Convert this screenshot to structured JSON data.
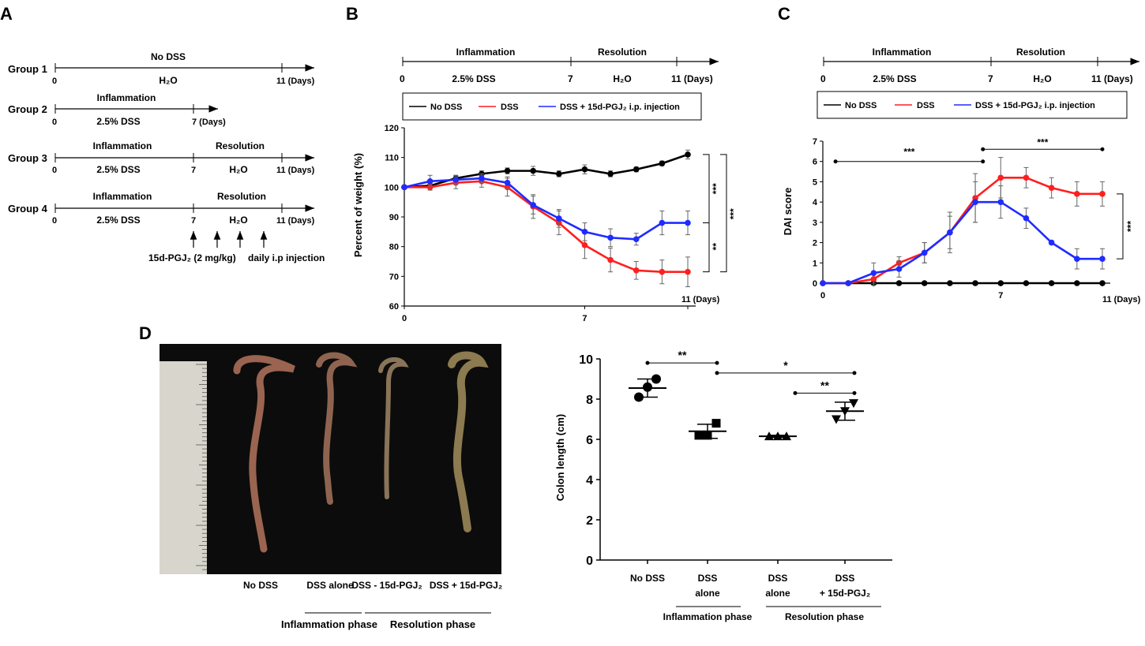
{
  "panels": {
    "a": {
      "letter": "A"
    },
    "b": {
      "letter": "B"
    },
    "c": {
      "letter": "C"
    },
    "d": {
      "letter": "D"
    }
  },
  "schemes": {
    "group1": {
      "label": "Group 1",
      "top": "No DSS",
      "bottom": "H₂O",
      "start": "0",
      "end": "11 (Days)"
    },
    "group2": {
      "label": "Group 2",
      "top": "Inflammation",
      "bottom": "2.5% DSS",
      "start": "0",
      "end": "7 (Days)"
    },
    "group3": {
      "label": "Group 3",
      "top1": "Inflammation",
      "top2": "Resolution",
      "bottom1": "2.5% DSS",
      "bottom2": "H₂O",
      "start": "0",
      "mid": "7",
      "end": "11 (Days)"
    },
    "group4": {
      "label": "Group 4",
      "top1": "Inflammation",
      "top2": "Resolution",
      "bottom1": "2.5% DSS",
      "bottom2": "H₂O",
      "start": "0",
      "mid": "7",
      "end": "11 (Days)",
      "injection_drug": "15d-PGJ₂ (2 mg/kg)",
      "injection_text": "daily i.p injection"
    },
    "timeline": {
      "phase1": "Inflammation",
      "phase2": "Resolution",
      "dss": "2.5% DSS",
      "water": "H₂O",
      "start": "0",
      "mid": "7",
      "end": "11 (Days)"
    }
  },
  "legend": {
    "no_dss": "No DSS",
    "dss": "DSS",
    "treated": "DSS + 15d-PGJ₂ i.p. injection"
  },
  "colors": {
    "no_dss": "#000000",
    "dss": "#ff1f1f",
    "treated": "#1f2cff"
  },
  "photo": {
    "labels": [
      "No DSS",
      "DSS alone",
      "DSS - 15d-PGJ₂",
      "DSS + 15d-PGJ₂"
    ],
    "phase1": "Inflammation phase",
    "phase2": "Resolution phase"
  },
  "chart_data": [
    {
      "id": "weight",
      "type": "line",
      "ylabel": "Percent of weight (%)",
      "xlabel": "11 (Days)",
      "xlim": [
        0,
        11
      ],
      "ylim": [
        60,
        120
      ],
      "yticks": [
        60,
        70,
        80,
        90,
        100,
        110,
        120
      ],
      "xticks": [
        0,
        7
      ],
      "series": [
        {
          "name": "No DSS",
          "x": [
            0,
            1,
            2,
            3,
            4,
            5,
            6,
            7,
            8,
            9,
            10,
            11
          ],
          "values": [
            100,
            100.5,
            103,
            104.5,
            105.5,
            105.5,
            104.5,
            106,
            104.5,
            106,
            108,
            111
          ],
          "err": [
            0.5,
            0.8,
            1,
            1,
            1,
            1.5,
            1,
            1.5,
            1,
            0.8,
            0.8,
            1.5
          ]
        },
        {
          "name": "DSS",
          "x": [
            0,
            1,
            2,
            3,
            4,
            5,
            6,
            7,
            8,
            9,
            10,
            11
          ],
          "values": [
            100,
            100,
            101.5,
            102,
            100,
            93.5,
            88,
            80.5,
            75.5,
            72,
            71.5,
            71.5
          ],
          "err": [
            0.5,
            1,
            2,
            2,
            3,
            4,
            4,
            4.5,
            4,
            3,
            4,
            5
          ]
        },
        {
          "name": "DSS + 15d-PGJ₂ i.p. injection",
          "x": [
            0,
            1,
            2,
            3,
            4,
            5,
            6,
            7,
            8,
            9,
            10,
            11
          ],
          "values": [
            100,
            102,
            102.5,
            103,
            101.5,
            94,
            89.5,
            85,
            83,
            82.5,
            88,
            88
          ],
          "err": [
            0.5,
            2,
            1.5,
            1.5,
            2,
            3,
            3,
            3,
            3,
            2,
            4,
            4
          ]
        }
      ],
      "significance": [
        "***",
        "**",
        "***"
      ]
    },
    {
      "id": "dai",
      "type": "line",
      "ylabel": "DAI score",
      "xlabel": "11 (Days)",
      "xlim": [
        0,
        11
      ],
      "ylim": [
        0,
        7
      ],
      "yticks": [
        0,
        1,
        2,
        3,
        4,
        5,
        6,
        7
      ],
      "xticks": [
        0,
        7
      ],
      "series": [
        {
          "name": "No DSS",
          "x": [
            0,
            1,
            2,
            3,
            4,
            5,
            6,
            7,
            8,
            9,
            10,
            11
          ],
          "values": [
            0,
            0,
            0,
            0,
            0,
            0,
            0,
            0,
            0,
            0,
            0,
            0
          ],
          "err": [
            0,
            0,
            0,
            0,
            0,
            0,
            0,
            0,
            0,
            0,
            0,
            0
          ]
        },
        {
          "name": "DSS",
          "x": [
            0,
            1,
            2,
            3,
            4,
            5,
            6,
            7,
            8,
            9,
            10,
            11
          ],
          "values": [
            0,
            0,
            0.2,
            1,
            1.5,
            2.5,
            4.2,
            5.2,
            5.2,
            4.7,
            4.4,
            4.4
          ],
          "err": [
            0,
            0,
            0.3,
            0.3,
            0.5,
            1,
            1.2,
            1,
            0.5,
            0.5,
            0.6,
            0.6
          ]
        },
        {
          "name": "DSS + 15d-PGJ₂ i.p. injection",
          "x": [
            0,
            1,
            2,
            3,
            4,
            5,
            6,
            7,
            8,
            9,
            10,
            11
          ],
          "values": [
            0,
            0,
            0.5,
            0.7,
            1.5,
            2.5,
            4,
            4,
            3.2,
            2,
            1.2,
            1.2
          ],
          "err": [
            0,
            0,
            0.5,
            0.4,
            0.5,
            0.8,
            1,
            0.8,
            0.5,
            0.1,
            0.5,
            0.5
          ]
        }
      ],
      "significance": [
        "***",
        "***",
        "***"
      ]
    },
    {
      "id": "colon",
      "type": "scatter",
      "ylabel": "Colon length (cm)",
      "ylim": [
        0,
        10
      ],
      "yticks": [
        0,
        2,
        4,
        6,
        8,
        10
      ],
      "groups": [
        {
          "label1": "No DSS",
          "label2": "",
          "points": [
            8.1,
            8.6,
            9.0
          ],
          "mean": 8.55,
          "sd": 0.45,
          "marker": "circle"
        },
        {
          "label1": "DSS",
          "label2": "alone",
          "points": [
            6.2,
            6.2,
            6.8
          ],
          "mean": 6.4,
          "sd": 0.35,
          "marker": "square"
        },
        {
          "label1": "DSS",
          "label2": "alone",
          "points": [
            6.15,
            6.15,
            6.15
          ],
          "mean": 6.15,
          "sd": 0.05,
          "marker": "triangle-up"
        },
        {
          "label1": "DSS",
          "label2": "+ 15d-PGJ₂",
          "points": [
            7.0,
            7.4,
            7.8
          ],
          "mean": 7.4,
          "sd": 0.45,
          "marker": "triangle-down"
        }
      ],
      "phase1": "Inflammation phase",
      "phase2": "Resolution phase",
      "significance": [
        "**",
        "*",
        "**"
      ]
    }
  ]
}
